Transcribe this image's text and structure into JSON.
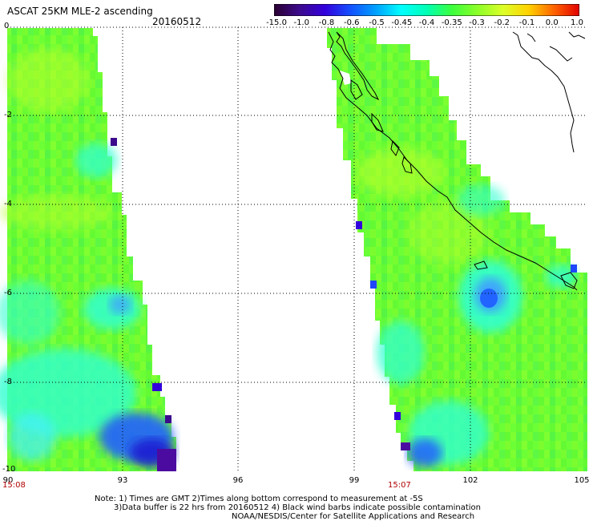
{
  "header": {
    "title": "ASCAT 25KM MLE-2 ascending",
    "date": "20160512"
  },
  "colorbar": {
    "labels": [
      "-15.0",
      "-1.0",
      "-0.8",
      "-0.6",
      "-0.5",
      "-0.45",
      "-0.4",
      "-0.35",
      "-0.3",
      "-0.2",
      "-0.1",
      "0.0",
      "1.0"
    ],
    "colors": [
      "#2a0030",
      "#3c0a8c",
      "#3200dc",
      "#1450ff",
      "#00a0ff",
      "#00ffff",
      "#00ffb4",
      "#3cff3c",
      "#8cff28",
      "#dcff28",
      "#ffd200",
      "#ff6400",
      "#e10000"
    ]
  },
  "axes": {
    "y_labels": [
      "0",
      "-2",
      "-4",
      "-6",
      "-8",
      "-10"
    ],
    "x_labels": [
      "90",
      "93",
      "96",
      "99",
      "102",
      "105"
    ]
  },
  "times": {
    "left": "15:08",
    "right": "15:07"
  },
  "notes": {
    "line1": "Note: 1) Times are GMT 2)Times along bottom correspond to measurement at -5S",
    "line2": "3)Data buffer is 22 hrs from 20160512 4) Black wind barbs indicate possible contamination",
    "line3": "NOAA/NESDIS/Center for Satellite Applications and Research"
  },
  "colors": {
    "base_swath": "#66ff33",
    "cyan": "#33ffd0",
    "blue": "#2060ff",
    "deep_blue": "#1e1ed2",
    "purple": "#4b0aa0"
  }
}
